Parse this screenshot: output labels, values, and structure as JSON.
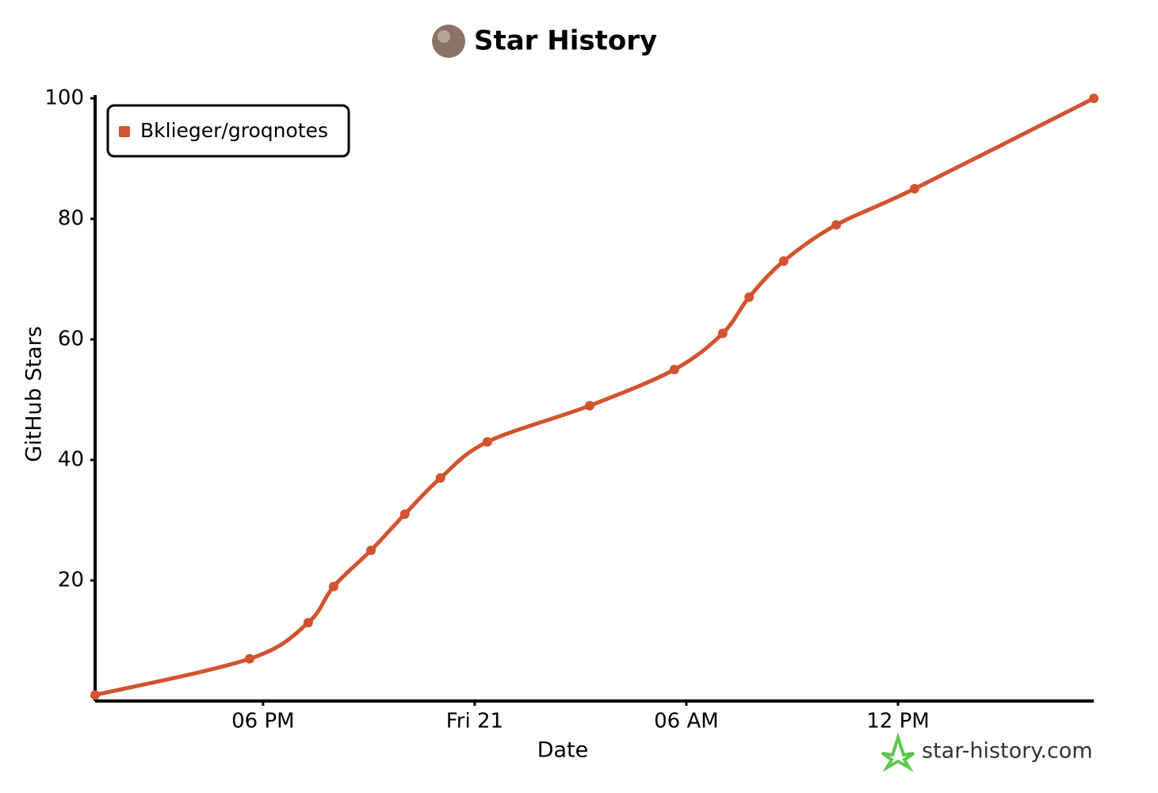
{
  "chart_data": {
    "type": "line",
    "title": "Star History",
    "x_label": "Date",
    "y_label": "GitHub Stars",
    "watermark": "star-history.com",
    "x": [
      13.24,
      17.62,
      19.28,
      20.0,
      21.06,
      22.02,
      23.03,
      24.36,
      27.26,
      29.66,
      31.03,
      31.78,
      32.76,
      34.25,
      36.47,
      41.55
    ],
    "series": [
      {
        "name": "Bklieger/groqnotes",
        "color": "#d2532f",
        "values": [
          1,
          7,
          13,
          19,
          25,
          31,
          37,
          43,
          49,
          55,
          61,
          67,
          73,
          79,
          85,
          100
        ]
      }
    ],
    "xlim": [
      13.24,
      41.55
    ],
    "xticks": [
      {
        "value": 18,
        "label": "06 PM"
      },
      {
        "value": 24,
        "label": "Fri 21"
      },
      {
        "value": 30,
        "label": "06 AM"
      },
      {
        "value": 36,
        "label": "12 PM"
      }
    ],
    "ylim": [
      0,
      100
    ],
    "yticks": [
      20,
      40,
      60,
      80,
      100
    ],
    "legend": "upper-left",
    "grid": false
  }
}
